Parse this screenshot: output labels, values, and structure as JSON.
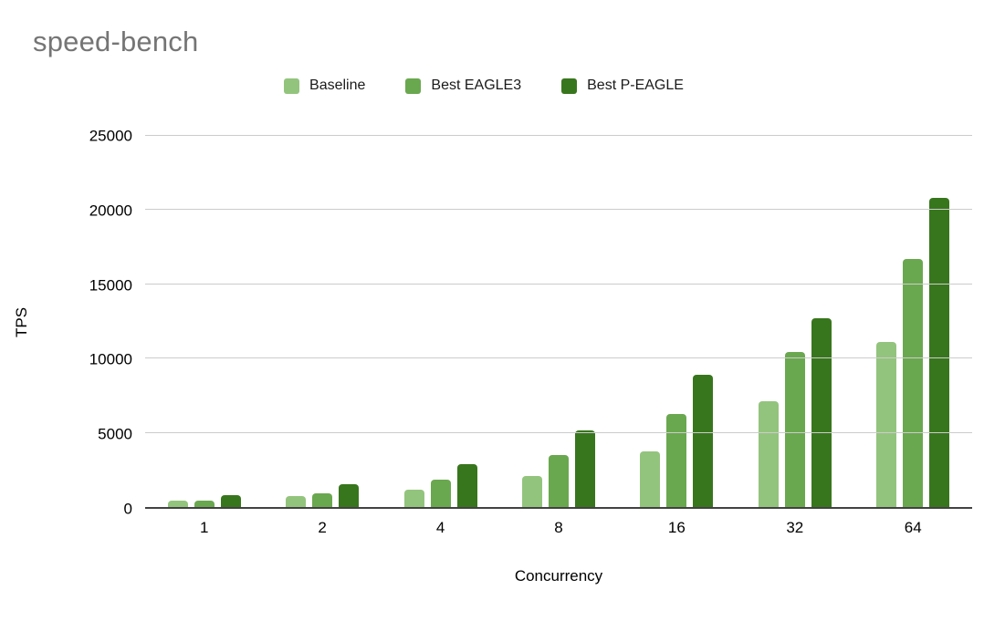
{
  "title": "speed-bench",
  "colors": {
    "baseline": "#93c47d",
    "best_eagle3": "#6aa84f",
    "best_p_eagle": "#38761d",
    "title_text": "#757575",
    "gridline": "#cccccc",
    "axis_line": "#424242"
  },
  "chart_data": {
    "type": "bar",
    "title": "speed-bench",
    "xlabel": "Concurrency",
    "ylabel": "TPS",
    "categories": [
      "1",
      "2",
      "4",
      "8",
      "16",
      "32",
      "64"
    ],
    "series": [
      {
        "name": "Baseline",
        "color": "#93c47d",
        "values": [
          450,
          750,
          1180,
          2060,
          3760,
          7100,
          11120
        ]
      },
      {
        "name": "Best EAGLE3",
        "color": "#6aa84f",
        "values": [
          460,
          900,
          1820,
          3480,
          6260,
          10450,
          16720
        ]
      },
      {
        "name": "Best P-EAGLE",
        "color": "#38761d",
        "values": [
          780,
          1560,
          2880,
          5180,
          8880,
          12700,
          20830
        ]
      }
    ],
    "ylim": [
      0,
      25000
    ],
    "yticks": [
      0,
      5000,
      10000,
      15000,
      20000,
      25000
    ],
    "grid": true,
    "legend_position": "top"
  }
}
